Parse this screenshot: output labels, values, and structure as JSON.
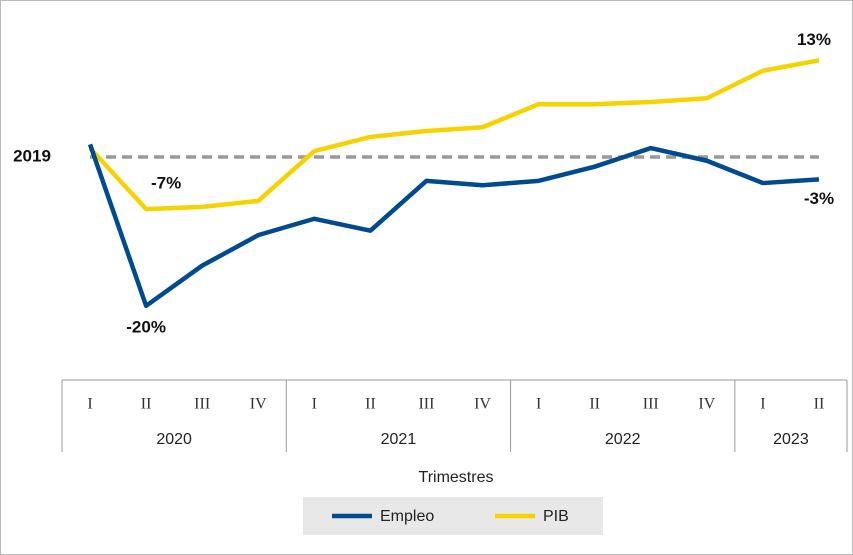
{
  "chart_data": {
    "type": "line",
    "x_label": "Trimestres",
    "groups": [
      {
        "label": "2020",
        "categories": [
          "I",
          "II",
          "III",
          "IV"
        ]
      },
      {
        "label": "2021",
        "categories": [
          "I",
          "II",
          "III",
          "IV"
        ]
      },
      {
        "label": "2022",
        "categories": [
          "I",
          "II",
          "III",
          "IV"
        ]
      },
      {
        "label": "2023",
        "categories": [
          "I",
          "II"
        ]
      }
    ],
    "reference": {
      "label": "2019",
      "value": 0
    },
    "ylim": [
      -25,
      16
    ],
    "series": [
      {
        "name": "Empleo",
        "color": "#004a8f",
        "values": [
          1.7,
          -20,
          -14.6,
          -10.5,
          -8.3,
          -9.9,
          -3.2,
          -3.8,
          -3.2,
          -1.3,
          1.2,
          -0.5,
          -3.5,
          -3
        ],
        "value_labels": [
          null,
          "-20%",
          null,
          null,
          null,
          null,
          null,
          null,
          null,
          null,
          null,
          null,
          null,
          "-3%"
        ]
      },
      {
        "name": "PIB",
        "color": "#f5d300",
        "values": [
          1.2,
          -7,
          -6.7,
          -5.9,
          0.8,
          2.7,
          3.5,
          4.0,
          7.1,
          7.1,
          7.4,
          7.9,
          11.6,
          13
        ],
        "value_labels": [
          null,
          "-7%",
          null,
          null,
          null,
          null,
          null,
          null,
          null,
          null,
          null,
          null,
          null,
          "13%"
        ]
      }
    ]
  }
}
